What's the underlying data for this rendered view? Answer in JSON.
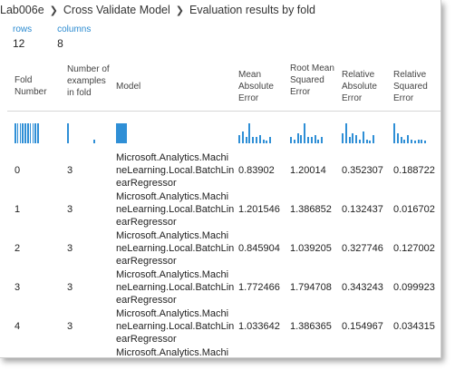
{
  "breadcrumb": {
    "items": [
      "Lab006e",
      "Cross Validate Model",
      "Evaluation results by fold"
    ]
  },
  "stats": {
    "rows_label": "rows",
    "rows_value": "12",
    "columns_label": "columns",
    "columns_value": "8"
  },
  "columns": [
    "Fold Number",
    "Number of examples in fold",
    "Model",
    "Mean Absolute Error",
    "Root Mean Squared Error",
    "Relative Absolute Error",
    "Relative Squared Error"
  ],
  "rows": [
    {
      "fold": "0",
      "examples": "3",
      "model": "Microsoft.Analytics.MachineLearning.Local.BatchLinearRegressor",
      "mae": "0.83902",
      "rmse": "1.20014",
      "rae": "0.352307",
      "rse": "0.188722"
    },
    {
      "fold": "1",
      "examples": "3",
      "model": "Microsoft.Analytics.MachineLearning.Local.BatchLinearRegressor",
      "mae": "1.201546",
      "rmse": "1.386852",
      "rae": "0.132437",
      "rse": "0.016702"
    },
    {
      "fold": "2",
      "examples": "3",
      "model": "Microsoft.Analytics.MachineLearning.Local.BatchLinearRegressor",
      "mae": "0.845904",
      "rmse": "1.039205",
      "rae": "0.327746",
      "rse": "0.127002"
    },
    {
      "fold": "3",
      "examples": "3",
      "model": "Microsoft.Analytics.MachineLearning.Local.BatchLinearRegressor",
      "mae": "1.772466",
      "rmse": "1.794708",
      "rae": "0.343243",
      "rse": "0.099923"
    },
    {
      "fold": "4",
      "examples": "3",
      "model": "Microsoft.Analytics.MachineLearning.Local.BatchLinearRegressor",
      "mae": "1.033642",
      "rmse": "1.386365",
      "rae": "0.154967",
      "rse": "0.034315"
    },
    {
      "fold": "",
      "examples": "",
      "model": "Microsoft.Analytics.Machi",
      "mae": "",
      "rmse": "",
      "rae": "",
      "rse": ""
    }
  ],
  "histograms": [
    [
      1,
      1,
      1,
      1,
      1,
      1,
      1,
      1,
      1,
      1
    ],
    [
      1,
      0,
      0,
      0,
      0,
      0,
      0,
      0,
      0,
      0.2
    ],
    [
      1
    ],
    [
      0.4,
      0.6,
      0.3,
      1,
      0.3,
      0.3,
      0.4,
      0.2,
      0.1,
      0.3
    ],
    [
      0.3,
      0.2,
      0.5,
      0.4,
      1,
      0.3,
      0.3,
      0.4,
      0.2,
      0.3
    ],
    [
      0.5,
      1,
      0.3,
      0.5,
      0.4,
      0.2,
      0.6,
      0.2,
      0.1,
      0.4
    ],
    [
      1,
      0.5,
      0.3,
      0.2,
      0.4,
      0.2,
      0.1,
      0.2,
      0.2,
      0.1
    ]
  ],
  "colors": {
    "link": "#2a8ad0",
    "bar": "#2f8fd6"
  }
}
